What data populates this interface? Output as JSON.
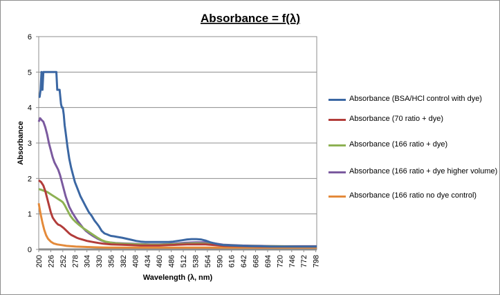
{
  "chart_data": {
    "type": "line",
    "title": "Absorbance = f(λ)",
    "xlabel": "Wavelength (λ, nm)",
    "ylabel": "Absorbance",
    "xlim": [
      200,
      800
    ],
    "ylim": [
      0,
      6
    ],
    "y_ticks": [
      "0",
      "1",
      "2",
      "3",
      "4",
      "5",
      "6"
    ],
    "x_ticks": [
      "200",
      "226",
      "252",
      "278",
      "304",
      "330",
      "356",
      "382",
      "408",
      "434",
      "460",
      "486",
      "512",
      "538",
      "564",
      "590",
      "616",
      "642",
      "668",
      "694",
      "720",
      "746",
      "772",
      "798"
    ],
    "grid": "horizontal major",
    "legend_position": "right",
    "series": [
      {
        "name": "Absorbance (BSA/HCl control with dye)",
        "color": "#3b67a3",
        "x": [
          200,
          202,
          204,
          206,
          208,
          210,
          215,
          220,
          226,
          232,
          238,
          240,
          242,
          245,
          248,
          250,
          252,
          254,
          256,
          258,
          262,
          266,
          270,
          274,
          278,
          284,
          290,
          296,
          302,
          308,
          314,
          320,
          326,
          330,
          336,
          342,
          348,
          352,
          356,
          362,
          370,
          380,
          390,
          400,
          410,
          420,
          430,
          440,
          450,
          460,
          470,
          480,
          490,
          500,
          510,
          520,
          530,
          540,
          550,
          560,
          570,
          580,
          590,
          600,
          620,
          640,
          660,
          680,
          700,
          720,
          740,
          760,
          780,
          800
        ],
        "y": [
          4.3,
          4.3,
          4.5,
          5,
          4.5,
          5,
          5,
          5,
          5,
          5,
          5,
          4.5,
          4.5,
          4.5,
          4.1,
          4.0,
          4.0,
          3.8,
          3.5,
          3.3,
          2.9,
          2.55,
          2.3,
          2.1,
          1.9,
          1.7,
          1.5,
          1.35,
          1.2,
          1.05,
          0.95,
          0.82,
          0.72,
          0.65,
          0.52,
          0.45,
          0.42,
          0.4,
          0.38,
          0.37,
          0.35,
          0.33,
          0.3,
          0.27,
          0.24,
          0.22,
          0.21,
          0.21,
          0.21,
          0.21,
          0.21,
          0.21,
          0.22,
          0.24,
          0.26,
          0.28,
          0.29,
          0.29,
          0.28,
          0.25,
          0.2,
          0.17,
          0.14,
          0.12,
          0.11,
          0.1,
          0.09,
          0.09,
          0.08,
          0.08,
          0.08,
          0.08,
          0.08,
          0.08
        ]
      },
      {
        "name": "Absorbance (70 ratio + dye)",
        "color": "#b23c3a",
        "x": [
          200,
          205,
          210,
          214,
          218,
          222,
          226,
          230,
          234,
          238,
          242,
          246,
          250,
          254,
          258,
          262,
          266,
          270,
          276,
          282,
          288,
          296,
          304,
          312,
          320,
          330,
          340,
          356,
          380,
          400,
          420,
          440,
          460,
          480,
          500,
          520,
          540,
          560,
          580,
          600,
          640,
          680,
          720,
          760,
          800
        ],
        "y": [
          1.95,
          1.9,
          1.8,
          1.65,
          1.45,
          1.25,
          1.05,
          0.9,
          0.82,
          0.75,
          0.7,
          0.68,
          0.64,
          0.6,
          0.55,
          0.5,
          0.45,
          0.41,
          0.37,
          0.33,
          0.3,
          0.27,
          0.24,
          0.22,
          0.2,
          0.18,
          0.16,
          0.14,
          0.13,
          0.12,
          0.11,
          0.11,
          0.11,
          0.12,
          0.13,
          0.14,
          0.14,
          0.14,
          0.12,
          0.1,
          0.09,
          0.08,
          0.08,
          0.08,
          0.08
        ]
      },
      {
        "name": "Absorbance (166 ratio + dye)",
        "color": "#8db153",
        "x": [
          200,
          206,
          212,
          218,
          224,
          230,
          236,
          242,
          248,
          252,
          256,
          260,
          264,
          268,
          274,
          280,
          288,
          296,
          304,
          312,
          320,
          328,
          336,
          344,
          352,
          360,
          370,
          380,
          400,
          420,
          440,
          460,
          480,
          500,
          520,
          540,
          560,
          580,
          600,
          640,
          680,
          720,
          760,
          800
        ],
        "y": [
          1.7,
          1.68,
          1.65,
          1.62,
          1.57,
          1.52,
          1.47,
          1.42,
          1.37,
          1.33,
          1.25,
          1.15,
          1.05,
          0.95,
          0.85,
          0.77,
          0.68,
          0.6,
          0.53,
          0.46,
          0.39,
          0.32,
          0.26,
          0.22,
          0.2,
          0.18,
          0.17,
          0.16,
          0.15,
          0.14,
          0.13,
          0.13,
          0.14,
          0.15,
          0.16,
          0.17,
          0.16,
          0.14,
          0.12,
          0.1,
          0.09,
          0.09,
          0.08,
          0.08
        ]
      },
      {
        "name": "Absorbance (166 ratio + dye higher volume)",
        "color": "#7b5a9f",
        "x": [
          200,
          203,
          206,
          210,
          214,
          218,
          222,
          226,
          230,
          234,
          238,
          242,
          246,
          250,
          254,
          258,
          262,
          266,
          272,
          278,
          284,
          290,
          296,
          302,
          310,
          318,
          326,
          334,
          342,
          350,
          358,
          366,
          380,
          400,
          420,
          440,
          460,
          480,
          500,
          520,
          540,
          560,
          580,
          600,
          640,
          680,
          720,
          760,
          800
        ],
        "y": [
          3.6,
          3.7,
          3.65,
          3.6,
          3.45,
          3.25,
          3.0,
          2.8,
          2.6,
          2.45,
          2.35,
          2.25,
          2.1,
          1.9,
          1.7,
          1.5,
          1.35,
          1.2,
          1.05,
          0.92,
          0.8,
          0.7,
          0.6,
          0.52,
          0.44,
          0.37,
          0.31,
          0.26,
          0.22,
          0.2,
          0.19,
          0.18,
          0.17,
          0.16,
          0.15,
          0.14,
          0.14,
          0.15,
          0.17,
          0.19,
          0.2,
          0.2,
          0.17,
          0.13,
          0.11,
          0.1,
          0.09,
          0.09,
          0.09
        ]
      },
      {
        "name": "Absorbance (166 ratio no dye control)",
        "color": "#e48a3a",
        "x": [
          200,
          202,
          204,
          206,
          208,
          212,
          216,
          220,
          226,
          232,
          240,
          250,
          260,
          270,
          280,
          300,
          320,
          340,
          360,
          400,
          440,
          480,
          520,
          560,
          600,
          640,
          680,
          720,
          760,
          800
        ],
        "y": [
          1.3,
          1.15,
          1.0,
          0.88,
          0.75,
          0.55,
          0.4,
          0.3,
          0.22,
          0.17,
          0.14,
          0.12,
          0.1,
          0.09,
          0.08,
          0.07,
          0.06,
          0.055,
          0.05,
          0.05,
          0.05,
          0.05,
          0.05,
          0.05,
          0.05,
          0.05,
          0.05,
          0.05,
          0.05,
          0.05
        ]
      }
    ]
  }
}
